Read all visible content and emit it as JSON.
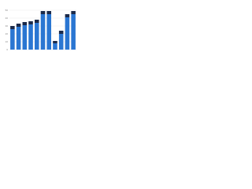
{
  "chart_data": {
    "type": "stacked_bar",
    "categories": [
      null,
      null,
      null,
      null,
      null,
      null,
      null,
      null,
      null,
      null,
      null
    ],
    "series": [
      {
        "color": "#2a76d2",
        "values": [
          26,
          29,
          31,
          32,
          34,
          45,
          45,
          8,
          20,
          41,
          45
        ]
      },
      {
        "color": "#1b2a4a",
        "values": [
          4,
          4,
          4,
          4,
          4,
          4,
          4,
          3,
          4,
          4,
          4
        ]
      }
    ],
    "ylim": [
      0,
      50
    ],
    "yticks": [
      0,
      10,
      20,
      30,
      40,
      50
    ],
    "grid": true
  }
}
